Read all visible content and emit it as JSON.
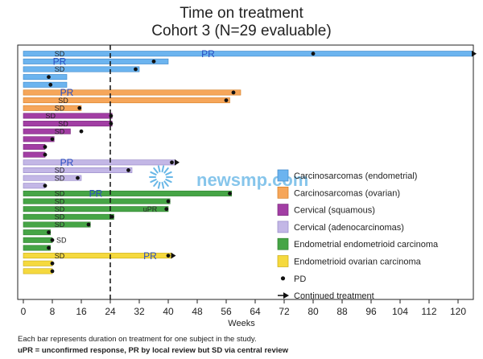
{
  "chart_data": {
    "type": "bar",
    "orientation": "horizontal",
    "title": "Time on treatment",
    "subtitle": "Cohort 3 (N=29 evaluable)",
    "xlabel": "Weeks",
    "ylabel": "",
    "xlim": [
      0,
      126
    ],
    "x_ticks": [
      0,
      8,
      16,
      24,
      32,
      40,
      48,
      56,
      64,
      72,
      80,
      88,
      96,
      104,
      112,
      120
    ],
    "reference_line": {
      "x": 24,
      "style": "dashed"
    },
    "groups": [
      {
        "name": "Carcinosarcomas (endometrial)",
        "color": "#6cb4ef",
        "edge": "#3a86c8"
      },
      {
        "name": "Carcinosarcomas (ovarian)",
        "color": "#f6a65a",
        "edge": "#d67d22"
      },
      {
        "name": "Cervical (squamous)",
        "color": "#a23ea4",
        "edge": "#7a2a7c"
      },
      {
        "name": "Cervical (adenocarcinomas)",
        "color": "#c3b7e6",
        "edge": "#9486c6"
      },
      {
        "name": "Endometrial endometrioid carcinoma",
        "color": "#46a546",
        "edge": "#2e7f2e"
      },
      {
        "name": "Endometrioid ovarian carcinoma",
        "color": "#f5d93e",
        "edge": "#c9ab14"
      }
    ],
    "bars": [
      {
        "group": 0,
        "value": 124,
        "label": "SD",
        "label_pos": 10,
        "label_color": "#222222",
        "label2": "PR",
        "label2_pos": 51,
        "label2_color": "#2a4ec2",
        "pd": 80,
        "arrow": true
      },
      {
        "group": 0,
        "value": 40,
        "label": "PR",
        "label_pos": 10,
        "label_color": "#2a4ec2",
        "pd": 36
      },
      {
        "group": 0,
        "value": 32,
        "label": "SD",
        "label_pos": 10,
        "label_color": "#222222",
        "pd": 31
      },
      {
        "group": 0,
        "value": 12,
        "pd": 7
      },
      {
        "group": 0,
        "value": 12,
        "pd": 7.5
      },
      {
        "group": 1,
        "value": 60,
        "label": "PR",
        "label_pos": 12,
        "label_color": "#2a4ec2",
        "pd": 58
      },
      {
        "group": 1,
        "value": 57,
        "label": "SD",
        "label_pos": 11,
        "label_color": "#222222",
        "pd": 56
      },
      {
        "group": 1,
        "value": 16,
        "label": "SD",
        "label_pos": 10,
        "label_color": "#222222",
        "pd": 15.5
      },
      {
        "group": 2,
        "value": 24.5,
        "label": "SD",
        "label_pos": 7.5,
        "label_color": "#222222",
        "pd": 24.2
      },
      {
        "group": 2,
        "value": 24.5,
        "label": "SD",
        "label_pos": 11,
        "label_color": "#222222",
        "pd": 24.2
      },
      {
        "group": 2,
        "value": 13,
        "label": "SD",
        "label_pos": 10,
        "label_color": "#222222",
        "pd": 16
      },
      {
        "group": 2,
        "value": 8.5,
        "pd": 8
      },
      {
        "group": 2,
        "value": 6,
        "pd": 6
      },
      {
        "group": 2,
        "value": 6,
        "pd": 6
      },
      {
        "group": 3,
        "value": 42,
        "label": "PR",
        "label_pos": 12,
        "label_color": "#2a4ec2",
        "pd": 41,
        "arrow": true
      },
      {
        "group": 3,
        "value": 30,
        "label": "SD",
        "label_pos": 10,
        "label_color": "#222222",
        "pd": 29
      },
      {
        "group": 3,
        "value": 16,
        "label": "SD",
        "label_pos": 10,
        "label_color": "#222222",
        "pd": 15
      },
      {
        "group": 3,
        "value": 6,
        "pd": 6
      },
      {
        "group": 4,
        "value": 57.5,
        "label": "SD",
        "label_pos": 10,
        "label_color": "#222222",
        "label2": "PR",
        "label2_pos": 20,
        "label2_color": "#2a4ec2",
        "pd": 57
      },
      {
        "group": 4,
        "value": 40.5,
        "label": "SD",
        "label_pos": 10,
        "label_color": "#222222",
        "pd": 40
      },
      {
        "group": 4,
        "value": 40,
        "label": "SD",
        "label_pos": 10,
        "label_color": "#222222",
        "label2": "uPR",
        "label2_pos": 35,
        "label2_color": "#222222",
        "pd": 39.5
      },
      {
        "group": 4,
        "value": 25,
        "label": "SD",
        "label_pos": 10,
        "label_color": "#222222",
        "pd": 24.5
      },
      {
        "group": 4,
        "value": 18.5,
        "label": "SD",
        "label_pos": 10,
        "label_color": "#222222",
        "pd": 18
      },
      {
        "group": 4,
        "value": 7.5,
        "pd": 7
      },
      {
        "group": 4,
        "value": 8,
        "label": "SD",
        "label_pos": 10.5,
        "label_color": "#222222",
        "pd": 8
      },
      {
        "group": 4,
        "value": 7.5,
        "pd": 7
      },
      {
        "group": 5,
        "value": 41,
        "label": "SD",
        "label_pos": 10,
        "label_color": "#222222",
        "label2": "PR",
        "label2_pos": 35,
        "label2_color": "#2a4ec2",
        "pd": 40,
        "arrow": true
      },
      {
        "group": 5,
        "value": 8,
        "pd": 8
      },
      {
        "group": 5,
        "value": 8,
        "pd": 8
      }
    ],
    "legend": {
      "placement": "right",
      "entries": [
        {
          "label": "Carcinosarcomas (endometrial)",
          "kind": "patch",
          "group": 0
        },
        {
          "label": "Carcinosarcomas (ovarian)",
          "kind": "patch",
          "group": 1
        },
        {
          "label": "Cervical (squamous)",
          "kind": "patch",
          "group": 2
        },
        {
          "label": "Cervical (adenocarcinomas)",
          "kind": "patch",
          "group": 3
        },
        {
          "label": "Endometrial endometrioid carcinoma",
          "kind": "patch",
          "group": 4
        },
        {
          "label": "Endometrioid ovarian carcinoma",
          "kind": "patch",
          "group": 5
        },
        {
          "label": "PD",
          "kind": "dot"
        },
        {
          "label": "Continued treatment",
          "kind": "arrow"
        }
      ]
    },
    "watermark": "newsmp.com",
    "footnotes": [
      "Each bar represents duration on treatment for one subject in the study.",
      "uPR = unconfirmed response, PR by local review but SD via central review"
    ]
  }
}
